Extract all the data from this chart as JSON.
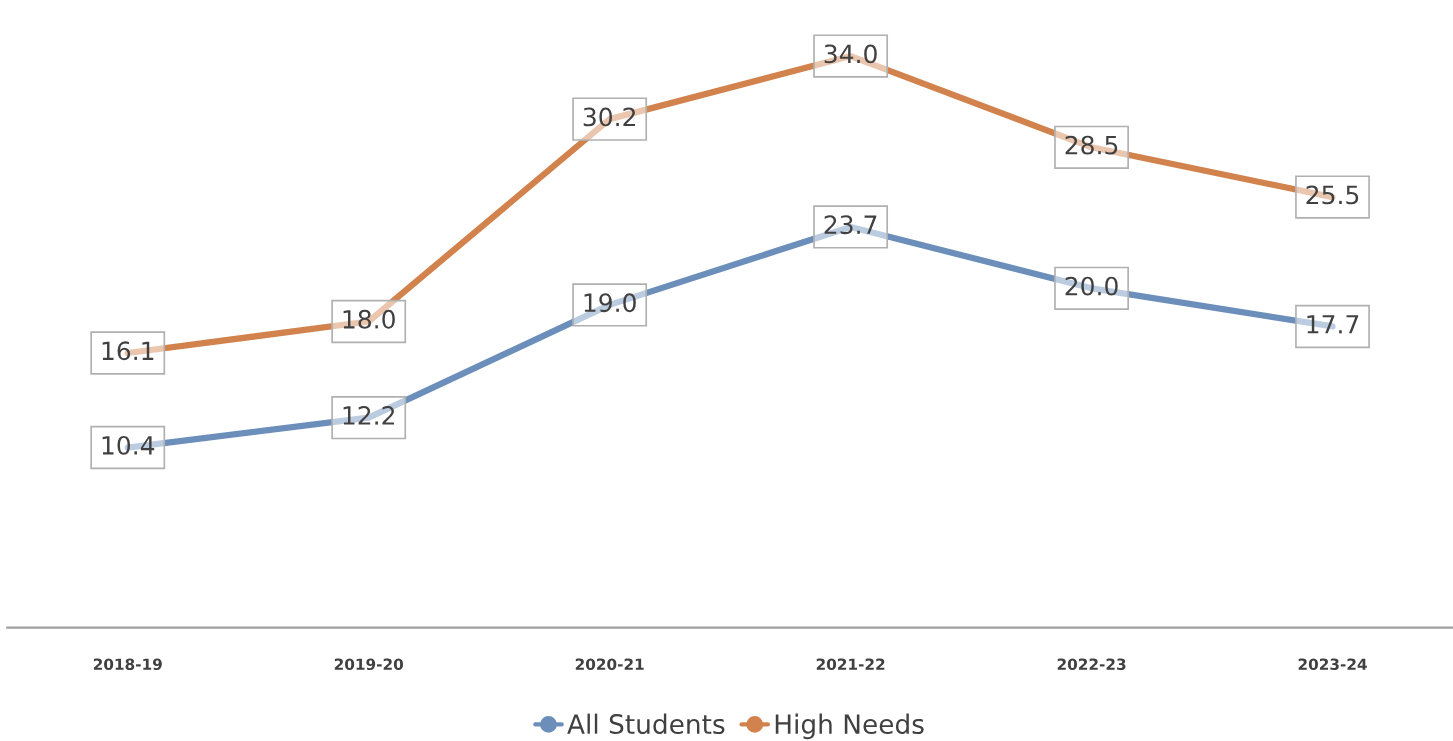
{
  "chart_data": {
    "type": "line",
    "categories": [
      "2018-19",
      "2019-20",
      "2020-21",
      "2021-22",
      "2022-23",
      "2023-24"
    ],
    "series": [
      {
        "name": "All Students",
        "color": "#6b8fba",
        "values": [
          10.4,
          12.2,
          19.0,
          23.7,
          20.0,
          17.7
        ],
        "value_labels": [
          "10.4",
          "12.2",
          "19.0",
          "23.7",
          "20.0",
          "17.7"
        ]
      },
      {
        "name": "High Needs",
        "color": "#d2824c",
        "values": [
          16.1,
          18.0,
          30.2,
          34.0,
          28.5,
          25.5
        ],
        "value_labels": [
          "16.1",
          "18.0",
          "30.2",
          "34.0",
          "28.5",
          "25.5"
        ]
      }
    ],
    "tick_labels": "x",
    "grid": false,
    "legend": "bottom",
    "line_style": "solid"
  }
}
